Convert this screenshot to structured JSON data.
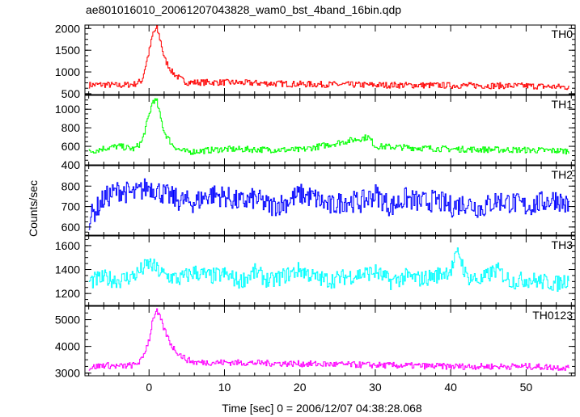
{
  "chart_data": {
    "type": "line",
    "title": "ae801016010_20061207043828_wam0_bst_4band_16bin.qdp",
    "xlabel": "Time [sec] 0 = 2006/12/07 04:38:28.068",
    "ylabel": "Counts/sec",
    "xlim": [
      -8.5,
      56.5
    ],
    "x_ticks": [
      0,
      10,
      20,
      30,
      40,
      50
    ],
    "grid": false,
    "panels": [
      {
        "label": "TH0",
        "color": "#ff0000",
        "ylim": [
          480,
          2080
        ],
        "y_ticks": [
          500,
          1000,
          1500,
          2000
        ],
        "x": [
          -8,
          -6,
          -4,
          -2,
          -1,
          0,
          0.5,
          1,
          1.5,
          2,
          3,
          4,
          5,
          10,
          20,
          30,
          40,
          50,
          55.5
        ],
        "y": [
          700,
          710,
          690,
          720,
          800,
          1500,
          1900,
          2000,
          1700,
          1300,
          1000,
          850,
          760,
          760,
          720,
          700,
          690,
          680,
          650
        ]
      },
      {
        "label": "TH1",
        "color": "#00ff00",
        "ylim": [
          400,
          1150
        ],
        "y_ticks": [
          400,
          600,
          800,
          1000
        ],
        "x": [
          -8,
          -6,
          -4,
          -2,
          -1,
          0,
          0.5,
          1,
          1.5,
          2,
          3,
          4,
          5,
          10,
          20,
          29,
          30,
          40,
          50,
          55.5
        ],
        "y": [
          540,
          580,
          600,
          570,
          650,
          950,
          1100,
          1080,
          900,
          750,
          620,
          560,
          540,
          570,
          560,
          700,
          600,
          570,
          560,
          550
        ]
      },
      {
        "label": "TH2",
        "color": "#0000ff",
        "ylim": [
          560,
          900
        ],
        "y_ticks": [
          600,
          700,
          800
        ],
        "x": [
          -8,
          -6,
          -4,
          -2,
          0,
          2,
          4,
          6,
          8,
          10,
          12,
          14,
          16,
          18,
          20,
          22,
          24,
          26,
          28,
          30,
          32,
          34,
          36,
          38,
          40,
          42,
          44,
          46,
          48,
          50,
          52,
          54,
          55.5
        ],
        "y": [
          640,
          740,
          780,
          760,
          800,
          760,
          730,
          720,
          760,
          750,
          720,
          740,
          700,
          720,
          760,
          740,
          700,
          730,
          720,
          760,
          700,
          740,
          720,
          730,
          700,
          720,
          690,
          730,
          720,
          700,
          720,
          740,
          700
        ]
      },
      {
        "label": "TH3",
        "color": "#00ffff",
        "ylim": [
          1100,
          1680
        ],
        "y_ticks": [
          1200,
          1400,
          1600
        ],
        "x": [
          -8,
          -6,
          -4,
          -2,
          0,
          2,
          4,
          6,
          8,
          10,
          12,
          14,
          16,
          18,
          20,
          22,
          24,
          26,
          28,
          30,
          32,
          34,
          36,
          38,
          40,
          41,
          42,
          44,
          46,
          48,
          50,
          52,
          54,
          55.5
        ],
        "y": [
          1300,
          1330,
          1310,
          1350,
          1450,
          1350,
          1320,
          1380,
          1340,
          1360,
          1300,
          1380,
          1300,
          1350,
          1400,
          1330,
          1310,
          1340,
          1360,
          1380,
          1300,
          1340,
          1320,
          1350,
          1400,
          1550,
          1340,
          1310,
          1400,
          1300,
          1320,
          1300,
          1280,
          1320
        ]
      },
      {
        "label": "TH0123",
        "color": "#ff00ff",
        "ylim": [
          2900,
          5500
        ],
        "y_ticks": [
          3000,
          4000,
          5000
        ],
        "x": [
          -8,
          -6,
          -4,
          -2,
          -1,
          0,
          0.5,
          1,
          1.5,
          2,
          3,
          4,
          5,
          6,
          10,
          20,
          30,
          40,
          50,
          55.5
        ],
        "y": [
          3200,
          3300,
          3250,
          3300,
          3500,
          4300,
          5100,
          5300,
          5000,
          4600,
          4000,
          3700,
          3500,
          3400,
          3400,
          3350,
          3300,
          3250,
          3250,
          3200
        ]
      }
    ]
  }
}
